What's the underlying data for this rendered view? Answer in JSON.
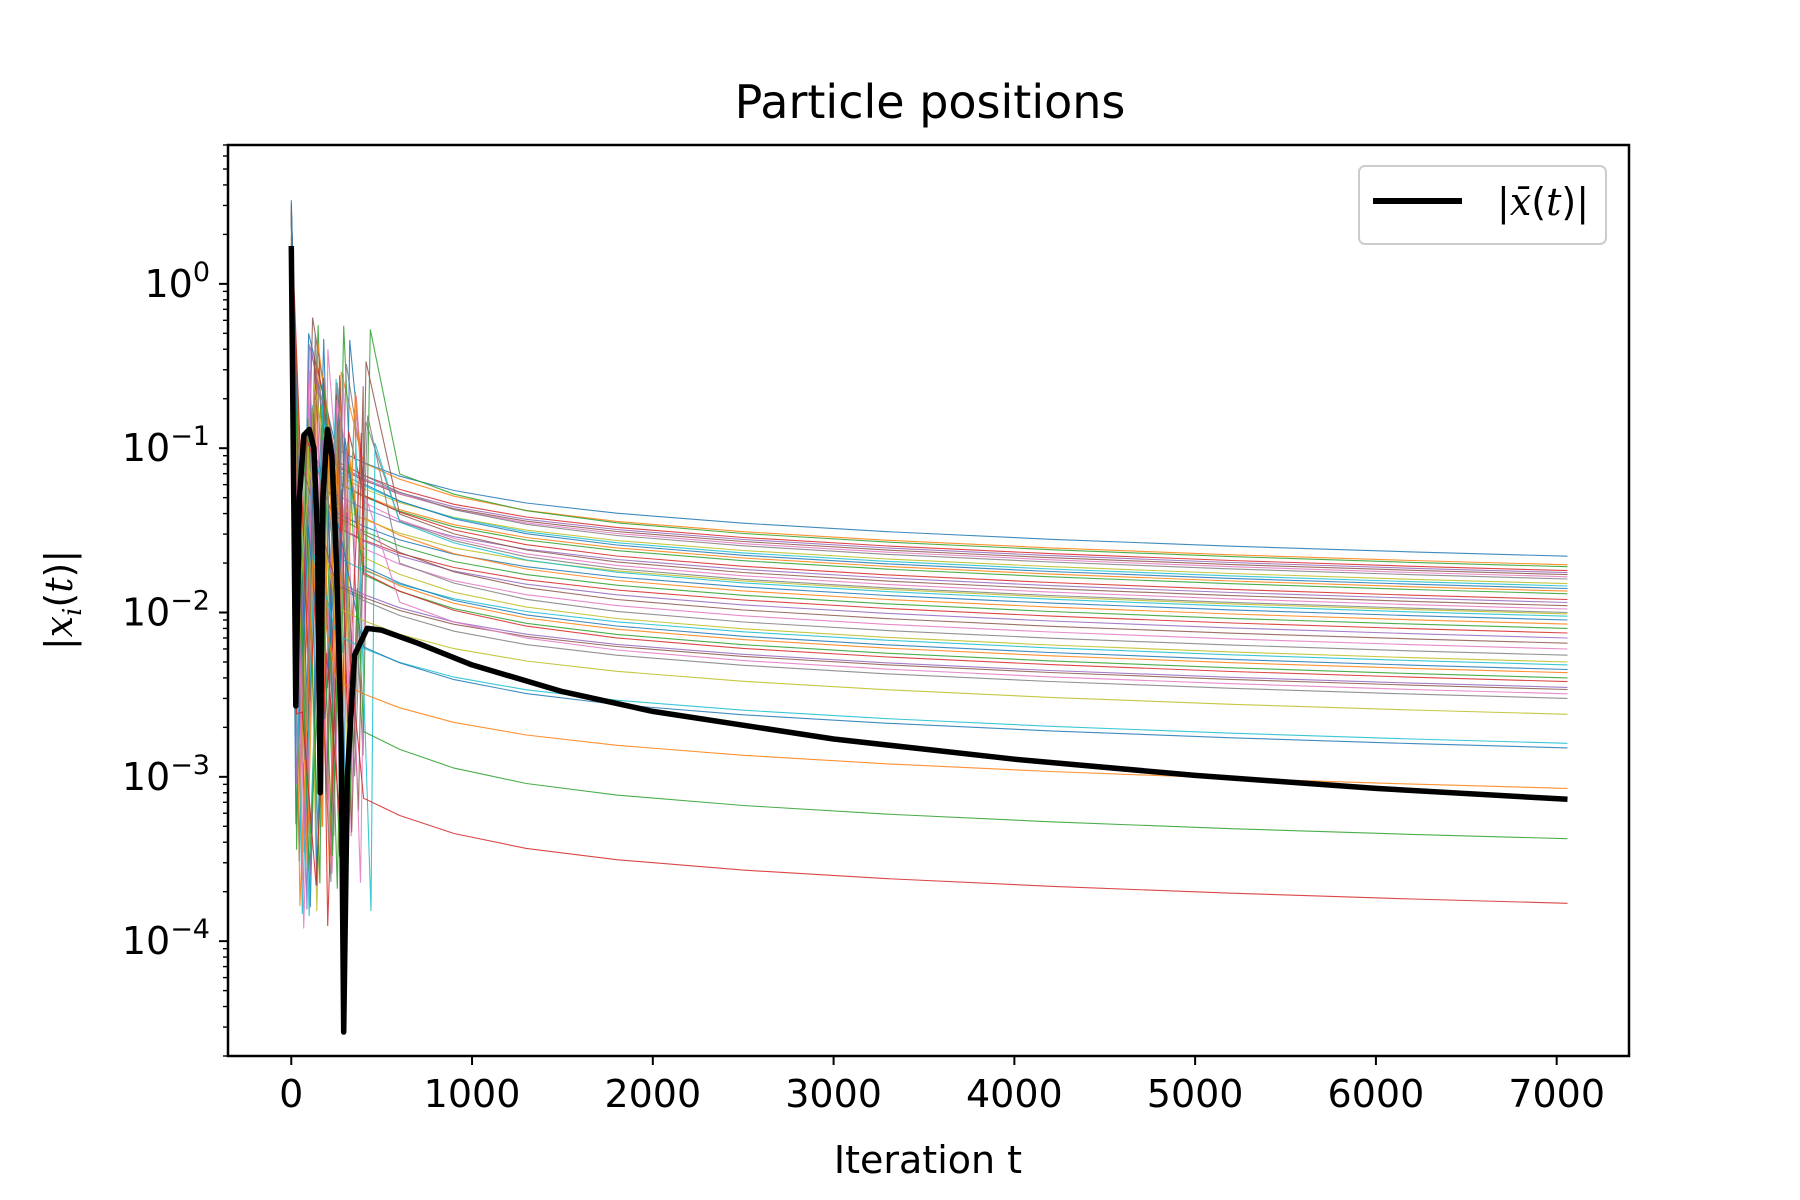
{
  "chart_data": {
    "type": "line",
    "title": "Particle positions",
    "xlabel": "Iteration t",
    "ylabel_math": {
      "bar1": "|",
      "var": "x",
      "sub": "i",
      "mid": "(",
      "arg": "t",
      "end": ")",
      "bar2": "|"
    },
    "xlim": [
      -350,
      7400
    ],
    "ylim": [
      2e-05,
      7
    ],
    "yscale": "log",
    "x_ticks": [
      {
        "value": 0,
        "label": "0"
      },
      {
        "value": 1000,
        "label": "1000"
      },
      {
        "value": 2000,
        "label": "2000"
      },
      {
        "value": 3000,
        "label": "3000"
      },
      {
        "value": 4000,
        "label": "4000"
      },
      {
        "value": 5000,
        "label": "5000"
      },
      {
        "value": 6000,
        "label": "6000"
      },
      {
        "value": 7000,
        "label": "7000"
      }
    ],
    "y_ticks": [
      {
        "value": 1,
        "base": "10",
        "exp": "0"
      },
      {
        "value": 0.1,
        "base": "10",
        "exp": "−1"
      },
      {
        "value": 0.01,
        "base": "10",
        "exp": "−2"
      },
      {
        "value": 0.001,
        "base": "10",
        "exp": "−3"
      },
      {
        "value": 0.0001,
        "base": "10",
        "exp": "−4"
      }
    ],
    "grid": false,
    "legend": {
      "placement": "top-right",
      "entries": [
        {
          "math": {
            "bar1": "|",
            "var": "x̄",
            "mid": "(",
            "arg": "t",
            "end": ")",
            "bar2": "|"
          },
          "color": "#000000"
        }
      ]
    },
    "mean_series": {
      "color": "#000000",
      "x": [
        0,
        25,
        45,
        70,
        100,
        125,
        145,
        160,
        175,
        200,
        225,
        250,
        275,
        290,
        310,
        350,
        420,
        500,
        700,
        1000,
        1500,
        2000,
        3000,
        4000,
        5000,
        6000,
        7060
      ],
      "y": [
        1.7,
        0.0027,
        0.05,
        0.12,
        0.13,
        0.1,
        0.03,
        0.0008,
        0.05,
        0.13,
        0.09,
        0.02,
        0.002,
        2.8e-05,
        0.001,
        0.0055,
        0.008,
        0.0078,
        0.0065,
        0.0048,
        0.0033,
        0.0025,
        0.0017,
        0.00128,
        0.00102,
        0.00085,
        0.00073
      ]
    },
    "particle_end_values": [
      0.022,
      0.0195,
      0.019,
      0.018,
      0.0175,
      0.017,
      0.0165,
      0.016,
      0.015,
      0.0145,
      0.014,
      0.0135,
      0.013,
      0.012,
      0.0115,
      0.011,
      0.0105,
      0.01,
      0.0098,
      0.0095,
      0.009,
      0.0085,
      0.008,
      0.0075,
      0.007,
      0.0065,
      0.006,
      0.0055,
      0.005,
      0.0048,
      0.0045,
      0.0043,
      0.004,
      0.0038,
      0.0035,
      0.0034,
      0.0032,
      0.003,
      0.0024,
      0.0016,
      0.0015,
      0.00085,
      0.00042,
      0.00017
    ],
    "particle_colors": [
      "#1f77b4",
      "#ff7f0e",
      "#2ca02c",
      "#d62728",
      "#9467bd",
      "#8c564b",
      "#e377c2",
      "#7f7f7f",
      "#bcbd22",
      "#17becf"
    ]
  }
}
